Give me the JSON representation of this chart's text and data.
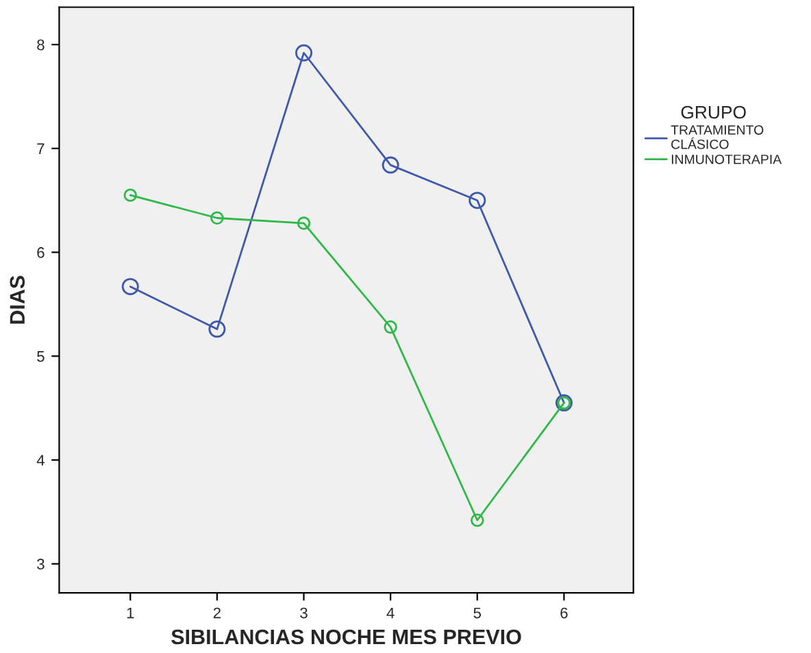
{
  "chart_data": {
    "type": "line",
    "xlabel": "SIBILANCIAS NOCHE MES PREVIO",
    "ylabel": "DIAS",
    "legend_title": "GRUPO",
    "x": [
      1,
      2,
      3,
      4,
      5,
      6
    ],
    "series": [
      {
        "name": "TRATAMIENTO CLÁSICO",
        "color": "#3e58ac",
        "values": [
          5.67,
          5.26,
          7.92,
          6.84,
          6.5,
          4.55
        ]
      },
      {
        "name": "INMUNOTERAPIA",
        "color": "#2eb848",
        "values": [
          6.55,
          6.33,
          6.28,
          5.28,
          3.42,
          4.55
        ]
      }
    ],
    "xlim": [
      0.18,
      6.8
    ],
    "ylim": [
      2.72,
      8.36
    ],
    "xticks": [
      1,
      2,
      3,
      4,
      5,
      6
    ],
    "yticks": [
      3,
      4,
      5,
      6,
      7,
      8
    ],
    "grid": false,
    "legend": "right",
    "marker": "circle",
    "line_style": "solid"
  }
}
